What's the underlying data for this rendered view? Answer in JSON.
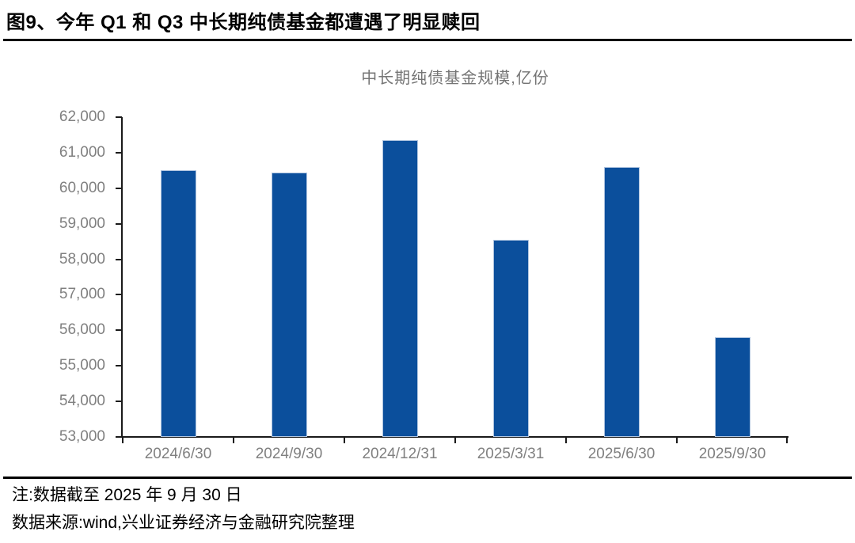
{
  "figure": {
    "title": "图9、今年 Q1 和 Q3 中长期纯债基金都遭遇了明显赎回",
    "notes": [
      "注:数据截至 2025 年 9 月 30 日",
      "数据来源:wind,兴业证券经济与金融研究院整理"
    ]
  },
  "chart_data": {
    "type": "bar",
    "title": "中长期纯债基金规模,亿份",
    "categories": [
      "2024/6/30",
      "2024/9/30",
      "2024/12/31",
      "2025/3/31",
      "2025/6/30",
      "2025/9/30"
    ],
    "values": [
      60500,
      60450,
      61350,
      58550,
      60600,
      55800
    ],
    "xlabel": "",
    "ylabel": "",
    "ylim": [
      53000,
      62000
    ],
    "ytick_step": 1000,
    "ytick_format": "thousands-comma",
    "grid": false,
    "legend_position": "none",
    "colors": {
      "bar": "#0B4F9C",
      "bar_border": "#AFC4DF",
      "axis": "#1A1A1A",
      "tick_label": "#808080",
      "subtitle": "#757575"
    }
  }
}
